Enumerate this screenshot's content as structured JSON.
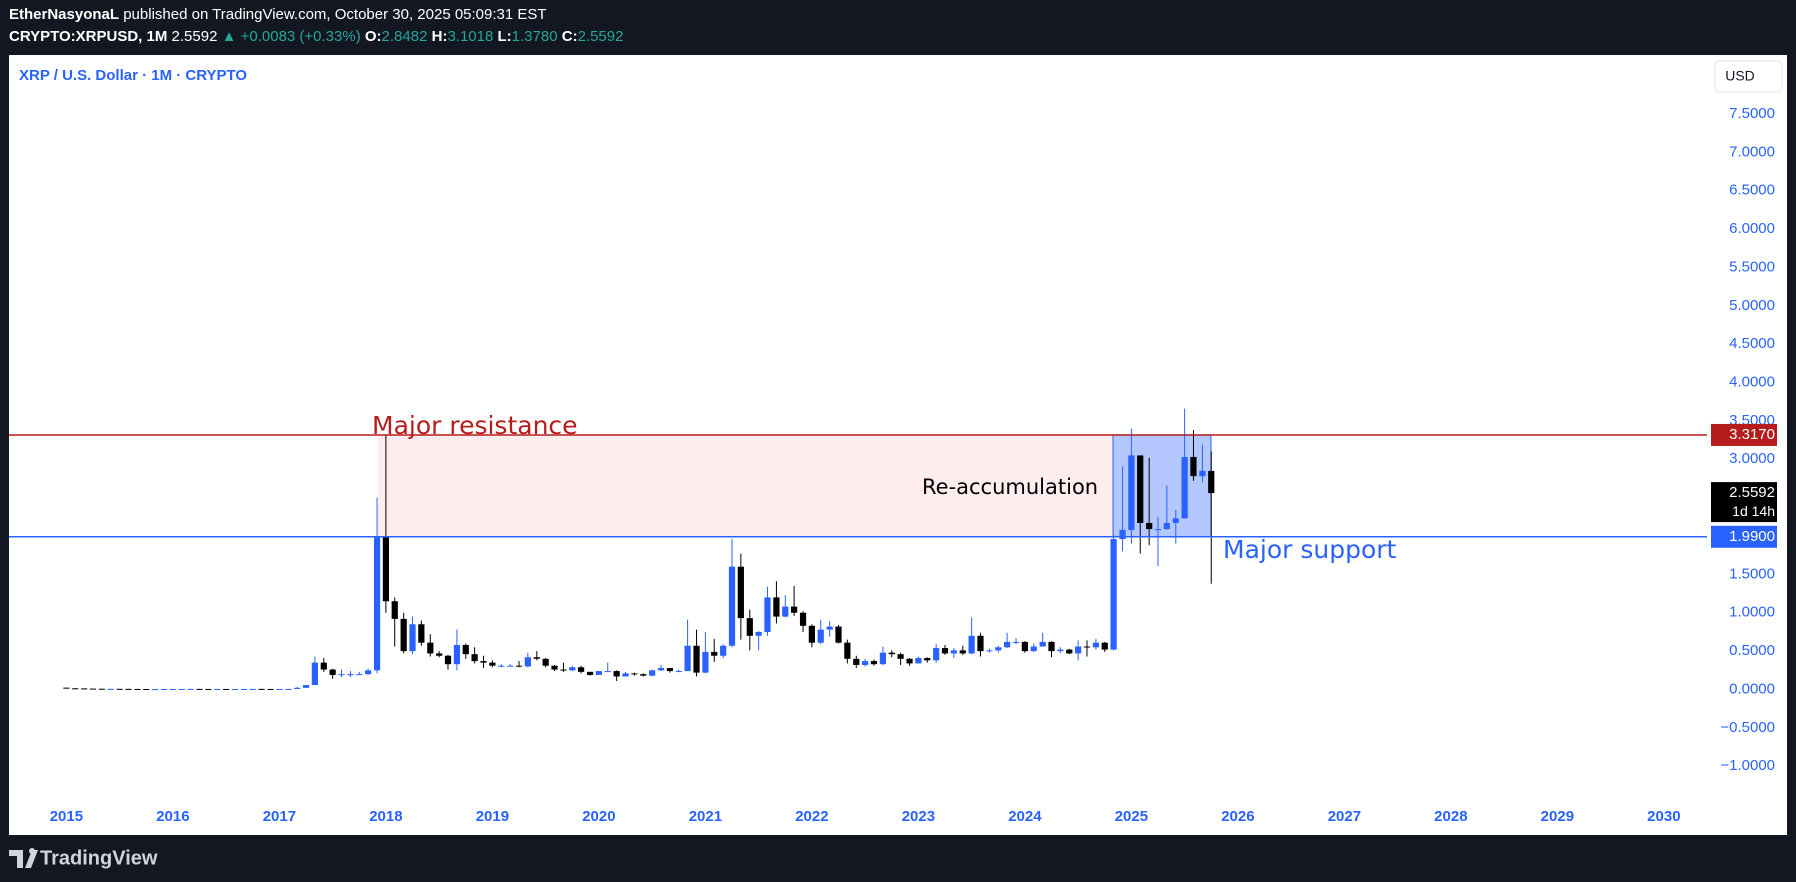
{
  "header": {
    "author": "EtherNasyonaL",
    "published": "published on TradingView.com, October 30, 2025 05:09:31 EST",
    "symbol": "CRYPTO:XRPUSD, 1M",
    "last": "2.5592",
    "change": "+0.0083 (+0.33%)",
    "ohlc": [
      {
        "label": "O:",
        "value": "2.8482"
      },
      {
        "label": "H:",
        "value": "3.1018"
      },
      {
        "label": "L:",
        "value": "1.3780"
      },
      {
        "label": "C:",
        "value": "2.5592"
      }
    ]
  },
  "chart_data": {
    "type": "candlestick",
    "title": "XRP / U.S. Dollar · 1M · CRYPTO",
    "currency": "USD",
    "up_color": "#2962ff",
    "down_color": "#000000",
    "grid": false,
    "xlim": [
      2014.461,
      2030.405
    ],
    "xticks": [
      2015,
      2016,
      2017,
      2018,
      2019,
      2020,
      2021,
      2022,
      2023,
      2024,
      2025,
      2026,
      2027,
      2028,
      2029,
      2030
    ],
    "ylim": [
      -1.896,
      8.268
    ],
    "yticks": [
      {
        "value": -1,
        "label": "−1.0000"
      },
      {
        "value": -0.5,
        "label": "−0.5000"
      },
      {
        "value": 0,
        "label": "0.0000"
      },
      {
        "value": 0.5,
        "label": "0.5000"
      },
      {
        "value": 1,
        "label": "1.0000"
      },
      {
        "value": 1.5,
        "label": "1.5000"
      },
      {
        "value": 2,
        "label": "2.0000"
      },
      {
        "value": 2.5,
        "label": "2.5000"
      },
      {
        "value": 3,
        "label": "3.0000"
      },
      {
        "value": 3.5,
        "label": "3.5000"
      },
      {
        "value": 4,
        "label": "4.0000"
      },
      {
        "value": 4.5,
        "label": "4.5000"
      },
      {
        "value": 5,
        "label": "5.0000"
      },
      {
        "value": 5.5,
        "label": "5.5000"
      },
      {
        "value": 6,
        "label": "6.0000"
      },
      {
        "value": 6.5,
        "label": "6.5000"
      },
      {
        "value": 7,
        "label": "7.0000"
      },
      {
        "value": 7.5,
        "label": "7.5000"
      }
    ],
    "x": [
      2015,
      2015.083,
      2015.167,
      2015.25,
      2015.333,
      2015.417,
      2015.5,
      2015.583,
      2015.667,
      2015.75,
      2015.833,
      2015.917,
      2016,
      2016.083,
      2016.167,
      2016.25,
      2016.333,
      2016.417,
      2016.5,
      2016.583,
      2016.667,
      2016.75,
      2016.833,
      2016.917,
      2017,
      2017.083,
      2017.167,
      2017.25,
      2017.333,
      2017.417,
      2017.5,
      2017.583,
      2017.667,
      2017.75,
      2017.833,
      2017.917,
      2018,
      2018.083,
      2018.167,
      2018.25,
      2018.333,
      2018.417,
      2018.5,
      2018.583,
      2018.667,
      2018.75,
      2018.833,
      2018.917,
      2019,
      2019.083,
      2019.167,
      2019.25,
      2019.333,
      2019.417,
      2019.5,
      2019.583,
      2019.667,
      2019.75,
      2019.833,
      2019.917,
      2020,
      2020.083,
      2020.167,
      2020.25,
      2020.333,
      2020.417,
      2020.5,
      2020.583,
      2020.667,
      2020.75,
      2020.833,
      2020.917,
      2021,
      2021.083,
      2021.167,
      2021.25,
      2021.333,
      2021.417,
      2021.5,
      2021.583,
      2021.667,
      2021.75,
      2021.833,
      2021.917,
      2022,
      2022.083,
      2022.167,
      2022.25,
      2022.333,
      2022.417,
      2022.5,
      2022.583,
      2022.667,
      2022.75,
      2022.833,
      2022.917,
      2023,
      2023.083,
      2023.167,
      2023.25,
      2023.333,
      2023.417,
      2023.5,
      2023.583,
      2023.667,
      2023.75,
      2023.833,
      2023.917,
      2024,
      2024.083,
      2024.167,
      2024.25,
      2024.333,
      2024.417,
      2024.5,
      2024.583,
      2024.667,
      2024.75,
      2024.833,
      2024.917,
      2025,
      2025.083,
      2025.167,
      2025.25,
      2025.333,
      2025.417,
      2025.5,
      2025.583,
      2025.667,
      2025.75
    ],
    "ohlc": [
      [
        0.024,
        0.025,
        0.013,
        0.016
      ],
      [
        0.016,
        0.017,
        0.013,
        0.014
      ],
      [
        0.014,
        0.015,
        0.01,
        0.012
      ],
      [
        0.012,
        0.013,
        0.009,
        0.01
      ],
      [
        0.01,
        0.011,
        0.008,
        0.008
      ],
      [
        0.008,
        0.009,
        0.007,
        0.009
      ],
      [
        0.009,
        0.01,
        0.007,
        0.008
      ],
      [
        0.008,
        0.009,
        0.006,
        0.007
      ],
      [
        0.007,
        0.008,
        0.005,
        0.006
      ],
      [
        0.006,
        0.007,
        0.005,
        0.005
      ],
      [
        0.005,
        0.006,
        0.004,
        0.005
      ],
      [
        0.005,
        0.007,
        0.005,
        0.006
      ],
      [
        0.006,
        0.007,
        0.005,
        0.006
      ],
      [
        0.006,
        0.007,
        0.006,
        0.007
      ],
      [
        0.007,
        0.011,
        0.007,
        0.008
      ],
      [
        0.008,
        0.009,
        0.007,
        0.007
      ],
      [
        0.007,
        0.007,
        0.006,
        0.006
      ],
      [
        0.006,
        0.007,
        0.006,
        0.007
      ],
      [
        0.007,
        0.007,
        0.006,
        0.006
      ],
      [
        0.006,
        0.007,
        0.006,
        0.006
      ],
      [
        0.006,
        0.007,
        0.006,
        0.007
      ],
      [
        0.007,
        0.008,
        0.007,
        0.008
      ],
      [
        0.008,
        0.009,
        0.007,
        0.007
      ],
      [
        0.007,
        0.008,
        0.006,
        0.006
      ],
      [
        0.006,
        0.007,
        0.006,
        0.007
      ],
      [
        0.007,
        0.008,
        0.006,
        0.007
      ],
      [
        0.007,
        0.035,
        0.006,
        0.022
      ],
      [
        0.022,
        0.06,
        0.021,
        0.058
      ],
      [
        0.058,
        0.43,
        0.057,
        0.35
      ],
      [
        0.35,
        0.41,
        0.23,
        0.26
      ],
      [
        0.26,
        0.27,
        0.14,
        0.19
      ],
      [
        0.19,
        0.26,
        0.16,
        0.2
      ],
      [
        0.2,
        0.24,
        0.16,
        0.2
      ],
      [
        0.2,
        0.23,
        0.19,
        0.2
      ],
      [
        0.2,
        0.27,
        0.19,
        0.25
      ],
      [
        0.25,
        2.5,
        0.21,
        1.98
      ],
      [
        1.98,
        3.31,
        1.0,
        1.15
      ],
      [
        1.15,
        1.2,
        0.56,
        0.92
      ],
      [
        0.92,
        1.0,
        0.47,
        0.5
      ],
      [
        0.5,
        0.95,
        0.46,
        0.85
      ],
      [
        0.85,
        0.9,
        0.57,
        0.61
      ],
      [
        0.61,
        0.72,
        0.43,
        0.47
      ],
      [
        0.47,
        0.5,
        0.42,
        0.44
      ],
      [
        0.44,
        0.45,
        0.26,
        0.33
      ],
      [
        0.33,
        0.78,
        0.25,
        0.58
      ],
      [
        0.58,
        0.6,
        0.4,
        0.46
      ],
      [
        0.46,
        0.55,
        0.34,
        0.37
      ],
      [
        0.37,
        0.44,
        0.28,
        0.35
      ],
      [
        0.35,
        0.38,
        0.29,
        0.31
      ],
      [
        0.31,
        0.33,
        0.29,
        0.31
      ],
      [
        0.31,
        0.33,
        0.3,
        0.31
      ],
      [
        0.31,
        0.37,
        0.29,
        0.3
      ],
      [
        0.3,
        0.48,
        0.29,
        0.42
      ],
      [
        0.42,
        0.5,
        0.38,
        0.4
      ],
      [
        0.4,
        0.41,
        0.29,
        0.31
      ],
      [
        0.31,
        0.32,
        0.24,
        0.26
      ],
      [
        0.26,
        0.35,
        0.23,
        0.25
      ],
      [
        0.25,
        0.31,
        0.24,
        0.29
      ],
      [
        0.29,
        0.31,
        0.21,
        0.23
      ],
      [
        0.23,
        0.23,
        0.18,
        0.19
      ],
      [
        0.19,
        0.24,
        0.19,
        0.24
      ],
      [
        0.24,
        0.35,
        0.23,
        0.24
      ],
      [
        0.24,
        0.25,
        0.11,
        0.17
      ],
      [
        0.17,
        0.23,
        0.17,
        0.21
      ],
      [
        0.21,
        0.22,
        0.18,
        0.2
      ],
      [
        0.2,
        0.21,
        0.17,
        0.18
      ],
      [
        0.18,
        0.26,
        0.17,
        0.25
      ],
      [
        0.25,
        0.32,
        0.24,
        0.28
      ],
      [
        0.28,
        0.28,
        0.22,
        0.24
      ],
      [
        0.24,
        0.26,
        0.23,
        0.24
      ],
      [
        0.24,
        0.91,
        0.24,
        0.57
      ],
      [
        0.57,
        0.78,
        0.17,
        0.22
      ],
      [
        0.22,
        0.75,
        0.21,
        0.49
      ],
      [
        0.49,
        0.66,
        0.36,
        0.44
      ],
      [
        0.44,
        0.59,
        0.41,
        0.57
      ],
      [
        0.57,
        1.96,
        0.55,
        1.6
      ],
      [
        1.6,
        1.77,
        0.65,
        0.93
      ],
      [
        0.93,
        1.04,
        0.51,
        0.7
      ],
      [
        0.7,
        0.76,
        0.51,
        0.75
      ],
      [
        0.75,
        1.34,
        0.7,
        1.2
      ],
      [
        1.2,
        1.41,
        0.86,
        0.95
      ],
      [
        0.95,
        1.23,
        0.94,
        1.08
      ],
      [
        1.08,
        1.35,
        0.96,
        1.0
      ],
      [
        1.0,
        1.02,
        0.75,
        0.83
      ],
      [
        0.83,
        0.85,
        0.55,
        0.61
      ],
      [
        0.61,
        0.91,
        0.59,
        0.78
      ],
      [
        0.78,
        0.89,
        0.69,
        0.82
      ],
      [
        0.82,
        0.84,
        0.6,
        0.61
      ],
      [
        0.61,
        0.65,
        0.34,
        0.4
      ],
      [
        0.4,
        0.44,
        0.28,
        0.32
      ],
      [
        0.32,
        0.4,
        0.3,
        0.37
      ],
      [
        0.37,
        0.39,
        0.31,
        0.33
      ],
      [
        0.33,
        0.56,
        0.32,
        0.48
      ],
      [
        0.48,
        0.51,
        0.42,
        0.46
      ],
      [
        0.46,
        0.48,
        0.32,
        0.4
      ],
      [
        0.4,
        0.41,
        0.31,
        0.34
      ],
      [
        0.34,
        0.43,
        0.34,
        0.41
      ],
      [
        0.41,
        0.42,
        0.35,
        0.38
      ],
      [
        0.38,
        0.59,
        0.35,
        0.54
      ],
      [
        0.54,
        0.58,
        0.45,
        0.47
      ],
      [
        0.47,
        0.54,
        0.41,
        0.51
      ],
      [
        0.51,
        0.57,
        0.45,
        0.47
      ],
      [
        0.47,
        0.94,
        0.46,
        0.7
      ],
      [
        0.7,
        0.74,
        0.43,
        0.5
      ],
      [
        0.5,
        0.53,
        0.48,
        0.51
      ],
      [
        0.51,
        0.57,
        0.48,
        0.55
      ],
      [
        0.55,
        0.74,
        0.54,
        0.62
      ],
      [
        0.62,
        0.67,
        0.59,
        0.62
      ],
      [
        0.62,
        0.63,
        0.48,
        0.5
      ],
      [
        0.5,
        0.6,
        0.49,
        0.56
      ],
      [
        0.56,
        0.74,
        0.56,
        0.62
      ],
      [
        0.62,
        0.63,
        0.42,
        0.5
      ],
      [
        0.5,
        0.55,
        0.47,
        0.52
      ],
      [
        0.52,
        0.53,
        0.46,
        0.47
      ],
      [
        0.47,
        0.64,
        0.38,
        0.56
      ],
      [
        0.56,
        0.64,
        0.43,
        0.55
      ],
      [
        0.55,
        0.66,
        0.52,
        0.61
      ],
      [
        0.61,
        0.62,
        0.49,
        0.52
      ],
      [
        0.52,
        2.01,
        0.51,
        1.96
      ],
      [
        1.96,
        2.91,
        1.8,
        2.08
      ],
      [
        2.08,
        3.4,
        1.9,
        3.05
      ],
      [
        3.05,
        3.05,
        1.77,
        2.17
      ],
      [
        2.17,
        3.02,
        1.88,
        2.09
      ],
      [
        2.09,
        2.25,
        1.61,
        2.09
      ],
      [
        2.09,
        2.66,
        2.08,
        2.17
      ],
      [
        2.17,
        2.34,
        1.9,
        2.23
      ],
      [
        2.23,
        3.66,
        2.23,
        3.03
      ],
      [
        3.03,
        3.38,
        2.72,
        2.78
      ],
      [
        2.78,
        3.19,
        2.7,
        2.85
      ],
      [
        2.8482,
        3.1018,
        1.378,
        2.5592
      ]
    ],
    "lines": [
      {
        "value": 3.317,
        "label": "3.3170",
        "color": "#b71c1c"
      },
      {
        "value": 1.99,
        "label": "1.9900",
        "color": "#2962ff"
      }
    ],
    "last_price": 2.5592,
    "countdown": "1d 14h",
    "annotations": [
      {
        "text": "Major resistance",
        "color": "#b71c1c"
      },
      {
        "text": "Re-accumulation",
        "color": "#000000"
      },
      {
        "text": "Major support",
        "color": "#2962ff"
      }
    ]
  },
  "footer": {
    "brand": "TradingView"
  }
}
